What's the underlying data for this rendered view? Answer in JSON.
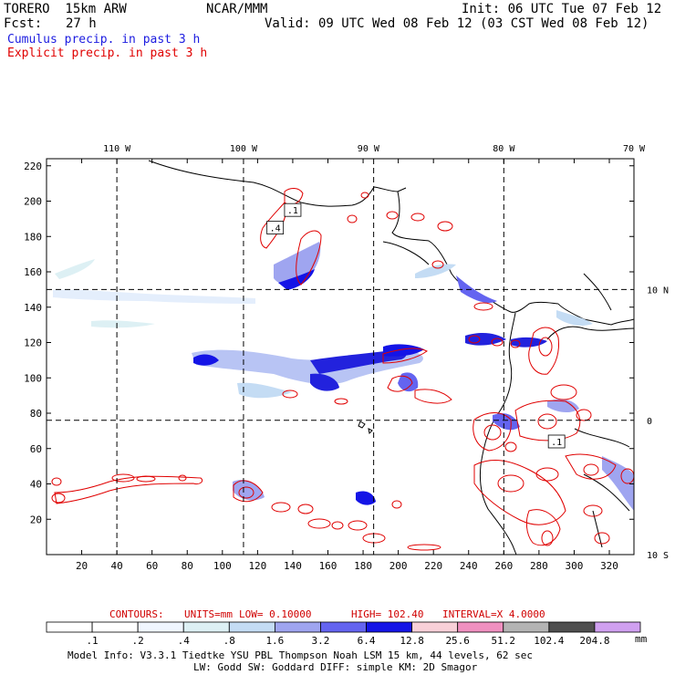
{
  "header": {
    "model": "TORERO  15km ARW",
    "org": "NCAR/MMM",
    "init": "Init: 06 UTC Tue 07 Feb 12",
    "fcst_label": "Fcst:",
    "fcst_value": "27 h",
    "valid": "Valid: 09 UTC Wed 08 Feb 12 (03 CST Wed 08 Feb 12)",
    "line1": "Cumulus precip. in past 3 h",
    "line2": "Explicit precip. in past 3 h"
  },
  "colors": {
    "cumulus_blue": "#2020c0",
    "explicit_red": "#e00000",
    "land": "#000000"
  },
  "chart_data": {
    "type": "heatmap",
    "x_ticks": [
      20,
      40,
      60,
      80,
      100,
      120,
      140,
      160,
      180,
      200,
      220,
      240,
      260,
      280,
      300,
      320
    ],
    "y_ticks": [
      20,
      40,
      60,
      80,
      100,
      120,
      140,
      160,
      180,
      200,
      220
    ],
    "xlim": [
      0,
      334
    ],
    "ylim": [
      0,
      224
    ],
    "lon_labels": [
      {
        "text": "110 W",
        "x": 40
      },
      {
        "text": "100 W",
        "x": 112
      },
      {
        "text": "90 W",
        "x": 183
      },
      {
        "text": "80 W",
        "x": 260
      },
      {
        "text": "70 W",
        "x": 334
      }
    ],
    "lat_labels": [
      {
        "text": "10 N",
        "y": 150
      },
      {
        "text": "0",
        "y": 76
      },
      {
        "text": "10 S",
        "y": 0
      }
    ],
    "grid_x": [
      40,
      112,
      186,
      260
    ],
    "grid_y": [
      150,
      76
    ],
    "annotations": [
      {
        "text": ".4",
        "x": 130,
        "y": 185
      },
      {
        "text": ".1",
        "x": 140,
        "y": 195
      },
      {
        "text": ".1",
        "x": 290,
        "y": 64
      }
    ],
    "contour_info": {
      "contours": "CONTOURS:",
      "units": "UNITS=mm",
      "low": "LOW= 0.10000",
      "high": "HIGH= 102.40",
      "interval": "INTERVAL=X 4.0000"
    },
    "colorbar_levels": [
      ".1",
      ".2",
      ".4",
      ".8",
      "1.6",
      "3.2",
      "6.4",
      "12.8",
      "25.6",
      "51.2",
      "102.4",
      "204.8"
    ],
    "colorbar_colors": [
      "#ffffff",
      "#ffffff",
      "#f0f6ff",
      "#ddf0f4",
      "#c4dcf4",
      "#9fa5f0",
      "#6464f0",
      "#1414e6",
      "#f8d0d8",
      "#f090c0",
      "#b4b4b4",
      "#505050",
      "#d0a0f0"
    ],
    "colorbar_unit": "mm"
  },
  "footer": {
    "line1": "Model Info: V3.3.1    Tiedtke YSU PBL  Thompson     Noah LSM  15 km,    44 levels,    62 sec",
    "line2": "LW: Godd SW: Goddard DIFF: simple KM: 2D Smagor"
  }
}
